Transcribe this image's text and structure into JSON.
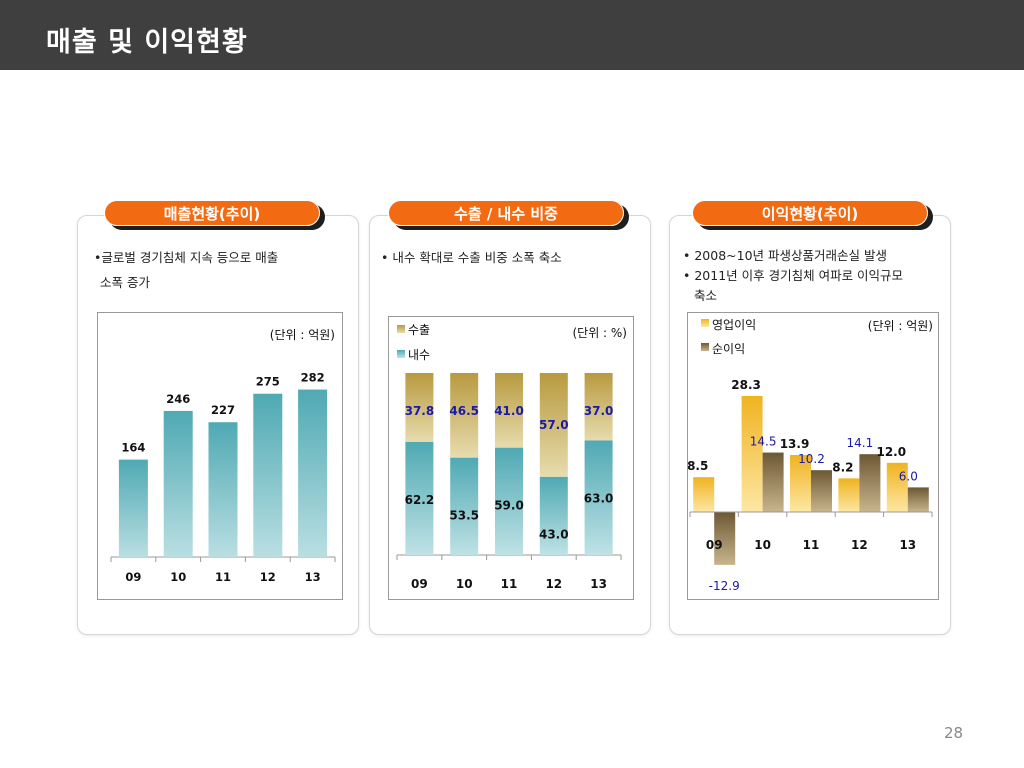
{
  "page": {
    "title": "매출 및 이익현황",
    "page_number": "28"
  },
  "panels": [
    {
      "header": "매출현황(추이)",
      "bullets": [
        "•글로벌 경기침체 지속 등으로 매출",
        "소폭 증가"
      ]
    },
    {
      "header": "수출 / 내수 비중",
      "bullets": [
        "• 내수 확대로 수출 비중 소폭 축소"
      ]
    },
    {
      "header": "이익현황(추이)",
      "bullets": [
        "• 2008~10년 파생상품거래손실 발생",
        "• 2011년 이후 경기침체 여파로 이익규모",
        "축소"
      ]
    }
  ],
  "chart_data": [
    {
      "type": "bar",
      "unit_label": "(단위 : 억원)",
      "categories": [
        "09",
        "10",
        "11",
        "12",
        "13"
      ],
      "values": [
        164,
        246,
        227,
        275,
        282
      ],
      "ylim": [
        0,
        320
      ],
      "colors": {
        "bar": "#5fb4bd"
      }
    },
    {
      "type": "bar",
      "stacked": true,
      "unit_label": "(단위 : %)",
      "categories": [
        "09",
        "10",
        "11",
        "12",
        "13"
      ],
      "series": [
        {
          "name": "내수",
          "values": [
            62.2,
            53.5,
            59.0,
            43.0,
            63.0
          ],
          "labels": [
            "62.2",
            "53.5",
            "59.0",
            "43.0",
            "63.0"
          ]
        },
        {
          "name": "수출",
          "values": [
            37.8,
            46.5,
            41.0,
            57.0,
            37.0
          ],
          "labels": [
            "37.8",
            "46.5",
            "41.0",
            "57.0",
            "37.0"
          ]
        }
      ],
      "ylim": [
        0,
        100
      ],
      "legend": "top-left",
      "colors": {
        "내수": "#6fbcc4",
        "수출": "#c9b36b",
        "label_top": "#1a1aa6"
      }
    },
    {
      "type": "bar",
      "unit_label": "(단위 : 억원)",
      "categories": [
        "09",
        "10",
        "11",
        "12",
        "13"
      ],
      "series": [
        {
          "name": "영업이익",
          "values": [
            8.5,
            28.3,
            13.9,
            8.2,
            12.0
          ],
          "labels": [
            "8.5",
            "28.3",
            "13.9",
            "8.2",
            "12.0"
          ]
        },
        {
          "name": "순이익",
          "values": [
            -12.9,
            14.5,
            10.2,
            14.1,
            6.0
          ],
          "labels": [
            "-12.9",
            "14.5",
            "10.2",
            "14.1",
            "6.0"
          ]
        }
      ],
      "ylim": [
        -14,
        32
      ],
      "legend": "top-left",
      "colors": {
        "영업이익": "#f5bf22",
        "순이익": "#7f6a45",
        "label_second": "#1a1aa6"
      }
    }
  ]
}
